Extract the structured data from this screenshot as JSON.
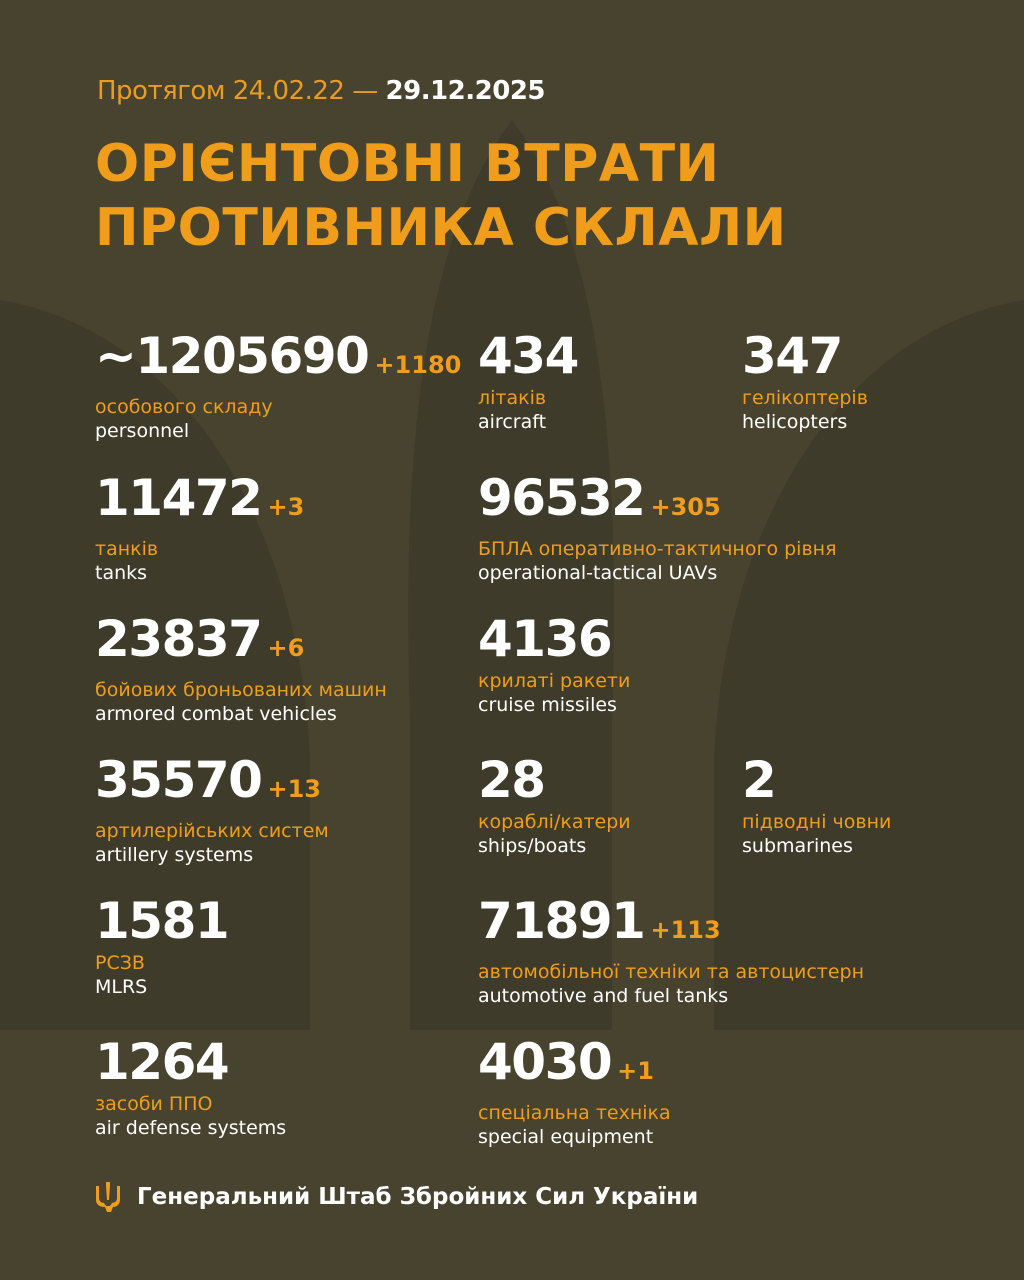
{
  "header": {
    "period_prefix": "Протягом 24.02.22 —",
    "period_end": "29.12.2025",
    "title_line1": "ОРІЄНТОВНІ ВТРАТИ",
    "title_line2": "ПРОТИВНИКА СКЛАЛИ"
  },
  "items": [
    {
      "value": "~1205690",
      "delta": "+1180",
      "ua": "особового складу",
      "en": "personnel"
    },
    {
      "value": "434",
      "delta": "",
      "ua": "літаків",
      "en": "aircraft"
    },
    {
      "value": "347",
      "delta": "",
      "ua": "гелікоптерів",
      "en": "helicopters"
    },
    {
      "value": "11472",
      "delta": "+3",
      "ua": "танків",
      "en": "tanks"
    },
    {
      "value": "96532",
      "delta": "+305",
      "ua": "БПЛА оперативно-тактичного рівня",
      "en": "operational-tactical UAVs"
    },
    {
      "value": "23837",
      "delta": "+6",
      "ua": "бойових броньованих машин",
      "en": "armored combat vehicles"
    },
    {
      "value": "4136",
      "delta": "",
      "ua": "крилаті ракети",
      "en": "cruise missiles"
    },
    {
      "value": "35570",
      "delta": "+13",
      "ua": "артилерійських систем",
      "en": "artillery systems"
    },
    {
      "value": "28",
      "delta": "",
      "ua": "кораблі/катери",
      "en": "ships/boats"
    },
    {
      "value": "2",
      "delta": "",
      "ua": "підводні човни",
      "en": "submarines"
    },
    {
      "value": "1581",
      "delta": "",
      "ua": "РСЗВ",
      "en": "MLRS"
    },
    {
      "value": "71891",
      "delta": "+113",
      "ua": "автомобільної техніки та автоцистерн",
      "en": "automotive and fuel tanks"
    },
    {
      "value": "1264",
      "delta": "",
      "ua": "засоби ППО",
      "en": "air defense systems"
    },
    {
      "value": "4030",
      "delta": "+1",
      "ua": "спеціальна техніка",
      "en": "special equipment"
    }
  ],
  "footer": {
    "text": "Генеральний Штаб Збройних Сил України",
    "icon": "trident-icon"
  },
  "colors": {
    "background": "#47432f",
    "accent": "#f09d1b",
    "text": "#ffffff"
  }
}
